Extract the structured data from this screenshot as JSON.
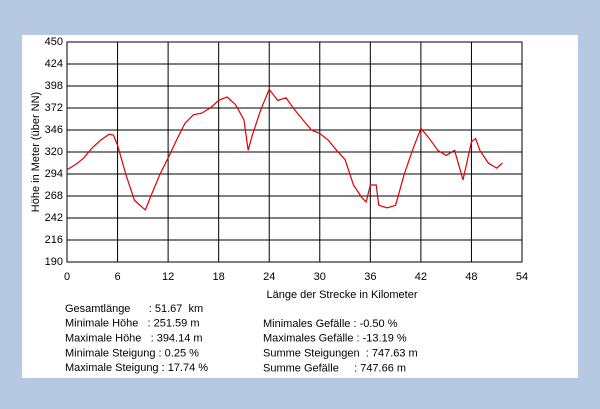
{
  "chart_data": {
    "type": "line",
    "ylabel": "Höhe in Meter (über NN)",
    "xlabel": "Länge der Strecke in Kilometer",
    "xlim": [
      0,
      54
    ],
    "xticks": [
      0,
      6,
      12,
      18,
      24,
      30,
      36,
      42,
      48,
      54
    ],
    "ylim": [
      190,
      450
    ],
    "yticks": [
      190,
      216,
      242,
      268,
      294,
      320,
      346,
      372,
      398,
      424,
      450
    ],
    "grid": true,
    "series": [
      {
        "color": "#e00000",
        "x": [
          0,
          1,
          2,
          3,
          4,
          5,
          5.5,
          6,
          7,
          8,
          9,
          9.3,
          10,
          11,
          12,
          13,
          14,
          15,
          16,
          17,
          18,
          19,
          20,
          21,
          21.5,
          22,
          23,
          24,
          25,
          26,
          27,
          28,
          29,
          30,
          31,
          32,
          33,
          34,
          35,
          35.5,
          36,
          36.7,
          37,
          38,
          39,
          40,
          41,
          42,
          43,
          44,
          45,
          46,
          47,
          48,
          48.5,
          49,
          50,
          51,
          51.67
        ],
        "values": [
          299,
          305,
          313,
          325,
          334,
          341,
          340,
          328,
          293,
          263,
          254,
          251.59,
          269,
          293,
          313,
          334,
          354,
          364,
          366,
          372,
          381,
          385,
          376,
          358,
          322,
          340,
          370,
          394.14,
          381,
          384,
          370,
          358,
          346,
          342,
          334,
          322,
          311,
          281,
          266,
          261,
          281,
          281,
          257,
          254,
          257,
          293,
          322,
          348,
          336,
          322,
          316,
          322,
          287,
          332,
          336,
          322,
          307,
          301,
          307
        ]
      }
    ],
    "stats_left": [
      "Gesamtlänge      : 51.67  km",
      "Minimale Höhe   : 251.59 m",
      "Maximale Höhe   : 394.14 m",
      "Minimale Steigung : 0.25 %",
      "Maximale Steigung : 17.74 %"
    ],
    "stats_right": [
      "Minimales Gefälle : -0.50 %",
      "Maximales Gefälle : -13.19 %",
      "Summe Steigungen  : 747.63 m",
      "Summe Gefälle     : 747.66 m"
    ]
  }
}
